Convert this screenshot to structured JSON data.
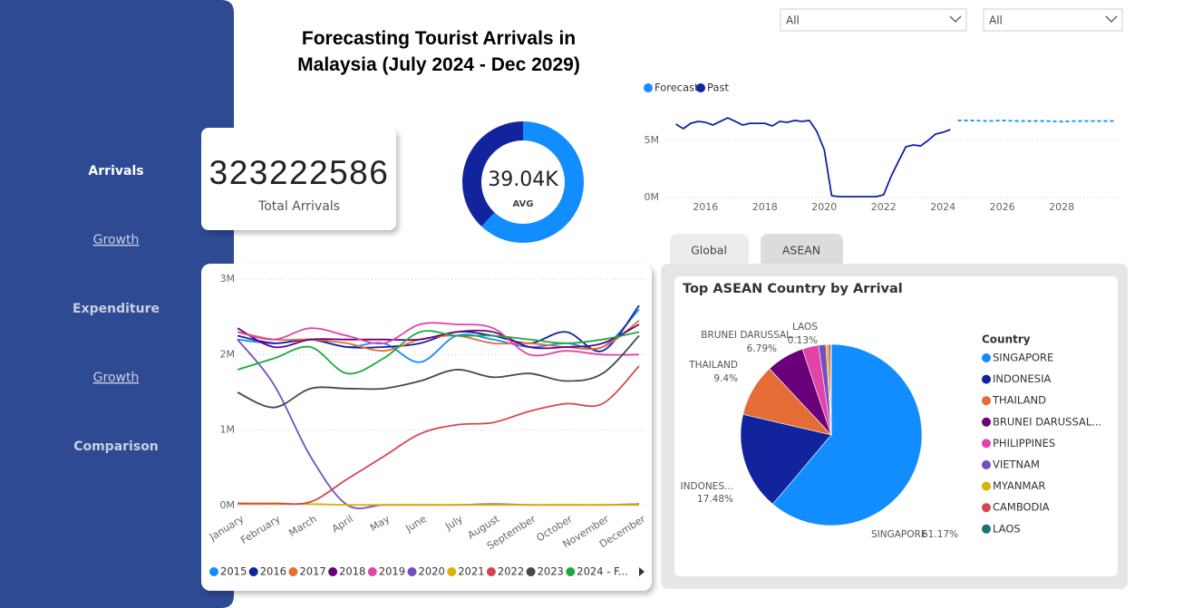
{
  "nav": [
    "Arrivals",
    "Growth",
    "Expenditure",
    "Growth",
    "Comparison"
  ],
  "title": "Forecasting Tourist Arrivals in Malaysia (July 2024 - Dec 2029)",
  "filters": [
    "All",
    "All"
  ],
  "kpi": {
    "value": 323222586,
    "label": "Total Arrivals"
  },
  "tabs": [
    "Global",
    "ASEAN"
  ],
  "chart_data": [
    {
      "type": "donut",
      "center_label": "39.04K",
      "center_caption": "AVG",
      "values": [
        62,
        38
      ],
      "colors": [
        "#118dff",
        "#12239e"
      ]
    },
    {
      "type": "line",
      "xlim": [
        2014.8,
        2029.95
      ],
      "xticks": [
        2016,
        2018,
        2020,
        2022,
        2024,
        2026,
        2028
      ],
      "ylim": [
        0,
        7000000
      ],
      "yticks": [
        {
          "value": 0,
          "label": "0M"
        },
        {
          "value": 5000000,
          "label": "5M"
        }
      ],
      "grid": true,
      "series": [
        {
          "name": "Forecast",
          "color": "#118dff",
          "dashed": true,
          "x": [
            2024.5,
            2025,
            2025.5,
            2026,
            2026.5,
            2027,
            2027.5,
            2028,
            2028.5,
            2029,
            2029.75
          ],
          "values": [
            6750000,
            6750000,
            6700000,
            6750000,
            6700000,
            6700000,
            6700000,
            6650000,
            6700000,
            6700000,
            6700000
          ]
        },
        {
          "name": "Past",
          "color": "#12239e",
          "dashed": false,
          "x": [
            2015,
            2015.25,
            2015.5,
            2015.75,
            2016,
            2016.25,
            2016.5,
            2016.75,
            2017,
            2017.25,
            2017.5,
            2017.75,
            2018,
            2018.25,
            2018.5,
            2018.75,
            2019,
            2019.25,
            2019.5,
            2019.75,
            2020,
            2020.25,
            2020.5,
            2020.75,
            2021,
            2021.25,
            2021.5,
            2021.75,
            2022,
            2022.25,
            2022.5,
            2022.75,
            2023,
            2023.25,
            2023.5,
            2023.75,
            2024,
            2024.25
          ],
          "values": [
            6430000,
            6030000,
            6500000,
            6670000,
            6590000,
            6350000,
            6670000,
            6980000,
            6670000,
            6350000,
            6500000,
            6500000,
            6500000,
            6270000,
            6670000,
            6590000,
            6750000,
            6670000,
            6750000,
            5790000,
            4200000,
            160000,
            80000,
            80000,
            80000,
            80000,
            80000,
            80000,
            240000,
            1830000,
            3170000,
            4440000,
            4600000,
            4520000,
            5000000,
            5560000,
            5710000,
            5950000
          ]
        }
      ]
    },
    {
      "type": "line",
      "categories": [
        "January",
        "February",
        "March",
        "April",
        "May",
        "June",
        "July",
        "August",
        "September",
        "October",
        "November",
        "December"
      ],
      "ylim": [
        0,
        3000000
      ],
      "yticks": [
        {
          "value": 0,
          "label": "0M"
        },
        {
          "value": 1000000,
          "label": "1M"
        },
        {
          "value": 2000000,
          "label": "2M"
        },
        {
          "value": 3000000,
          "label": "3M"
        }
      ],
      "grid": true,
      "series": [
        {
          "name": "2015",
          "color": "#118dff",
          "values": [
            2200000,
            2150000,
            2200000,
            2100000,
            2150000,
            1900000,
            2250000,
            2200000,
            2100000,
            2150000,
            2100000,
            2600000
          ]
        },
        {
          "name": "2016",
          "color": "#12239e",
          "values": [
            2250000,
            2150000,
            2200000,
            2100000,
            2100000,
            2150000,
            2300000,
            2250000,
            2150000,
            2300000,
            2050000,
            2650000
          ]
        },
        {
          "name": "2017",
          "color": "#e66c37",
          "values": [
            2300000,
            2200000,
            2200000,
            2150000,
            2050000,
            2200000,
            2250000,
            2150000,
            2150000,
            2100000,
            2100000,
            2450000
          ]
        },
        {
          "name": "2018",
          "color": "#6b007b",
          "values": [
            2350000,
            2100000,
            2200000,
            2200000,
            2200000,
            2200000,
            2300000,
            2300000,
            2100000,
            2100000,
            2150000,
            2400000
          ]
        },
        {
          "name": "2019",
          "color": "#e044a7",
          "values": [
            2300000,
            2200000,
            2350000,
            2250000,
            2150000,
            2400000,
            2400000,
            2350000,
            2000000,
            2050000,
            2000000,
            2000000
          ]
        },
        {
          "name": "2020",
          "color": "#744ec2",
          "values": [
            2200000,
            1600000,
            650000,
            10000,
            10000,
            10000,
            10000,
            20000,
            10000,
            10000,
            10000,
            20000
          ]
        },
        {
          "name": "2021",
          "color": "#d9b300",
          "values": [
            20000,
            20000,
            20000,
            10000,
            10000,
            10000,
            10000,
            10000,
            10000,
            10000,
            10000,
            10000
          ]
        },
        {
          "name": "2022",
          "color": "#d64550",
          "values": [
            30000,
            30000,
            50000,
            350000,
            650000,
            950000,
            1070000,
            1100000,
            1250000,
            1350000,
            1350000,
            1850000
          ]
        },
        {
          "name": "2023",
          "color": "#404a4f",
          "values": [
            1500000,
            1300000,
            1550000,
            1550000,
            1550000,
            1650000,
            1800000,
            1700000,
            1750000,
            1650000,
            1750000,
            2250000
          ]
        },
        {
          "name": "2024 - F...",
          "color": "#1aab40",
          "values": [
            1800000,
            1950000,
            2100000,
            1750000,
            1950000,
            2300000,
            2250000,
            2250000,
            2200000,
            2150000,
            2200000,
            2300000
          ]
        }
      ]
    },
    {
      "type": "pie",
      "title": "Top ASEAN Country by Arrival",
      "legend_title": "Country",
      "categories": [
        "SINGAPORE",
        "INDONESIA",
        "THAILAND",
        "BRUNEI DARUSSAL...",
        "PHILIPPINES",
        "VIETNAM",
        "MYANMAR",
        "CAMBODIA",
        "LAOS"
      ],
      "values": [
        61.17,
        17.48,
        9.4,
        6.79,
        2.9,
        1.3,
        0.43,
        0.4,
        0.13
      ],
      "slice_labels": [
        "SINGAPORE",
        "INDONES...",
        "THAILAND",
        "BRUNEI DARUSSAL...",
        null,
        null,
        null,
        null,
        "LAOS"
      ],
      "value_labels": [
        "61.17%",
        "17.48%",
        "9.4%",
        "6.79%",
        null,
        null,
        null,
        null,
        "0.13%"
      ],
      "colors": [
        "#118dff",
        "#12239e",
        "#e66c37",
        "#6b007b",
        "#e044a7",
        "#744ec2",
        "#d9b300",
        "#d64550",
        "#197278"
      ]
    }
  ]
}
